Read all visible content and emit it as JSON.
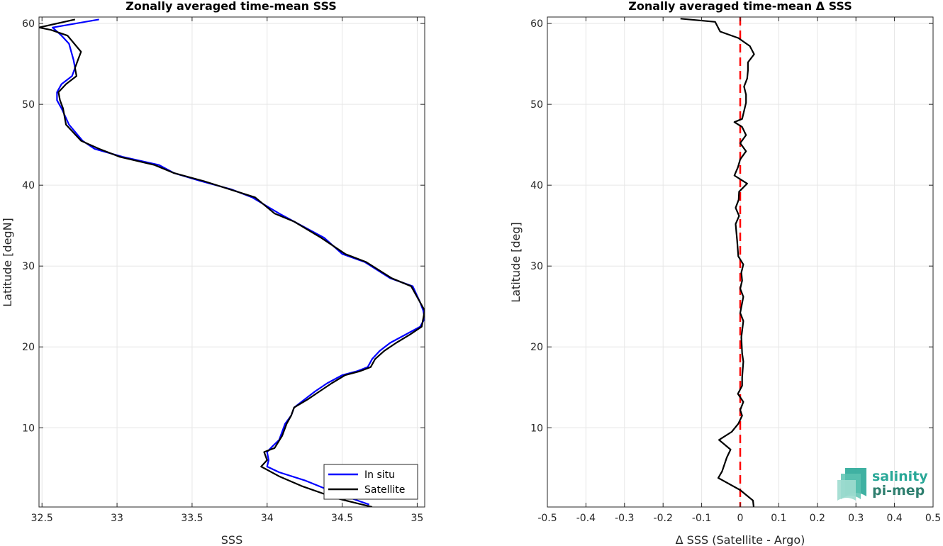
{
  "chart_data": [
    {
      "type": "line",
      "title": "Zonally averaged time-mean SSS",
      "xlabel": "SSS",
      "ylabel": "Latitude [degN]",
      "xlim": [
        32.48,
        35.05
      ],
      "ylim": [
        0.2,
        60.8
      ],
      "x_ticks": [
        "32.5",
        "33",
        "33.5",
        "34",
        "34.5",
        "35"
      ],
      "y_ticks": [
        "10",
        "20",
        "30",
        "40",
        "50",
        "60"
      ],
      "grid": true,
      "legend": {
        "placement": "bottom-right",
        "entries": [
          "In situ",
          "Satellite"
        ]
      },
      "series": [
        {
          "name": "In situ",
          "color": "#0000ff",
          "points": [
            [
              34.68,
              0.5
            ],
            [
              34.45,
              2.0
            ],
            [
              34.25,
              3.5
            ],
            [
              34.08,
              4.5
            ],
            [
              34.0,
              5.2
            ],
            [
              34.01,
              6.0
            ],
            [
              34.0,
              7.0
            ],
            [
              34.03,
              7.6
            ],
            [
              34.08,
              8.5
            ],
            [
              34.1,
              9.5
            ],
            [
              34.12,
              10.5
            ],
            [
              34.16,
              11.5
            ],
            [
              34.18,
              12.5
            ],
            [
              34.25,
              13.5
            ],
            [
              34.32,
              14.5
            ],
            [
              34.4,
              15.5
            ],
            [
              34.5,
              16.5
            ],
            [
              34.6,
              17.0
            ],
            [
              34.67,
              17.5
            ],
            [
              34.7,
              18.5
            ],
            [
              34.75,
              19.5
            ],
            [
              34.82,
              20.5
            ],
            [
              34.92,
              21.5
            ],
            [
              35.02,
              22.5
            ],
            [
              35.05,
              23.5
            ],
            [
              35.04,
              24.5
            ],
            [
              35.02,
              25.5
            ],
            [
              34.97,
              27.5
            ],
            [
              34.82,
              28.5
            ],
            [
              34.65,
              30.5
            ],
            [
              34.5,
              31.5
            ],
            [
              34.38,
              33.5
            ],
            [
              34.18,
              35.5
            ],
            [
              34.08,
              36.5
            ],
            [
              33.9,
              38.5
            ],
            [
              33.76,
              39.5
            ],
            [
              33.56,
              40.5
            ],
            [
              33.38,
              41.5
            ],
            [
              33.28,
              42.5
            ],
            [
              33.04,
              43.5
            ],
            [
              32.85,
              44.5
            ],
            [
              32.77,
              45.5
            ],
            [
              32.68,
              47.5
            ],
            [
              32.63,
              49.5
            ],
            [
              32.6,
              50.5
            ],
            [
              32.6,
              51.5
            ],
            [
              32.63,
              52.5
            ],
            [
              32.7,
              53.5
            ],
            [
              32.72,
              54.5
            ],
            [
              32.71,
              55.5
            ],
            [
              32.68,
              57.5
            ],
            [
              32.63,
              58.5
            ],
            [
              32.57,
              59.5
            ],
            [
              32.88,
              60.5
            ]
          ]
        },
        {
          "name": "Satellite",
          "color": "#000000",
          "points": [
            [
              34.7,
              0.2
            ],
            [
              34.46,
              1.3
            ],
            [
              34.23,
              2.8
            ],
            [
              34.08,
              4.0
            ],
            [
              33.96,
              5.2
            ],
            [
              34.0,
              6.0
            ],
            [
              33.98,
              7.0
            ],
            [
              34.05,
              7.5
            ],
            [
              34.1,
              9.0
            ],
            [
              34.13,
              10.5
            ],
            [
              34.16,
              11.5
            ],
            [
              34.18,
              12.5
            ],
            [
              34.27,
              13.5
            ],
            [
              34.35,
              14.5
            ],
            [
              34.43,
              15.5
            ],
            [
              34.52,
              16.5
            ],
            [
              34.62,
              17.0
            ],
            [
              34.69,
              17.5
            ],
            [
              34.72,
              18.5
            ],
            [
              34.78,
              19.5
            ],
            [
              34.86,
              20.5
            ],
            [
              34.95,
              21.5
            ],
            [
              35.03,
              22.5
            ],
            [
              35.04,
              23.5
            ],
            [
              35.05,
              24.5
            ],
            [
              35.02,
              25.5
            ],
            [
              34.96,
              27.5
            ],
            [
              34.83,
              28.5
            ],
            [
              34.66,
              30.5
            ],
            [
              34.52,
              31.5
            ],
            [
              34.36,
              33.5
            ],
            [
              34.18,
              35.5
            ],
            [
              34.05,
              36.5
            ],
            [
              33.92,
              38.5
            ],
            [
              33.75,
              39.5
            ],
            [
              33.58,
              40.5
            ],
            [
              33.38,
              41.5
            ],
            [
              33.25,
              42.5
            ],
            [
              33.02,
              43.5
            ],
            [
              32.88,
              44.5
            ],
            [
              32.76,
              45.5
            ],
            [
              32.66,
              47.5
            ],
            [
              32.64,
              49.5
            ],
            [
              32.62,
              50.5
            ],
            [
              32.61,
              51.5
            ],
            [
              32.66,
              52.5
            ],
            [
              32.73,
              53.5
            ],
            [
              32.72,
              54.5
            ],
            [
              32.74,
              55.5
            ],
            [
              32.76,
              56.5
            ],
            [
              32.67,
              58.5
            ],
            [
              32.56,
              59.2
            ],
            [
              32.48,
              59.5
            ],
            [
              32.72,
              60.5
            ]
          ]
        }
      ]
    },
    {
      "type": "line",
      "title": "Zonally averaged time-mean Δ SSS",
      "xlabel": "Δ SSS (Satellite - Argo)",
      "ylabel": "Latitude [deg]",
      "xlim": [
        -0.5,
        0.5
      ],
      "ylim": [
        0.2,
        60.8
      ],
      "x_ticks": [
        "-0.5",
        "-0.4",
        "-0.3",
        "-0.2",
        "-0.1",
        "0",
        "0.1",
        "0.2",
        "0.3",
        "0.4",
        "0.5"
      ],
      "y_ticks": [
        "10",
        "20",
        "30",
        "40",
        "50",
        "60"
      ],
      "grid": true,
      "reference_line": {
        "x": 0,
        "color": "#ff0000",
        "style": "dashed"
      },
      "series": [
        {
          "color": "#000000",
          "points": [
            [
              0.035,
              0.2
            ],
            [
              0.033,
              1.0
            ],
            [
              0.0,
              2.3
            ],
            [
              -0.057,
              3.8
            ],
            [
              -0.047,
              4.6
            ],
            [
              -0.035,
              6.3
            ],
            [
              -0.025,
              7.3
            ],
            [
              -0.055,
              8.5
            ],
            [
              -0.022,
              9.5
            ],
            [
              -0.005,
              10.5
            ],
            [
              0.005,
              11.5
            ],
            [
              0.0,
              12.2
            ],
            [
              0.008,
              13.2
            ],
            [
              -0.006,
              14.2
            ],
            [
              0.005,
              15.2
            ],
            [
              0.005,
              16.2
            ],
            [
              0.008,
              18.2
            ],
            [
              0.005,
              19.2
            ],
            [
              0.003,
              21.2
            ],
            [
              0.008,
              23.2
            ],
            [
              0.0,
              24.2
            ],
            [
              0.008,
              26.2
            ],
            [
              0.0,
              27.2
            ],
            [
              0.005,
              28.2
            ],
            [
              0.003,
              29.2
            ],
            [
              0.008,
              30.2
            ],
            [
              -0.005,
              31.2
            ],
            [
              -0.008,
              33.2
            ],
            [
              -0.012,
              35.2
            ],
            [
              -0.003,
              36.2
            ],
            [
              -0.012,
              37.2
            ],
            [
              -0.004,
              38.2
            ],
            [
              -0.003,
              39.2
            ],
            [
              0.018,
              40.2
            ],
            [
              -0.015,
              41.2
            ],
            [
              -0.006,
              42.2
            ],
            [
              0.0,
              43.2
            ],
            [
              0.015,
              44.2
            ],
            [
              0.0,
              45.2
            ],
            [
              0.015,
              46.2
            ],
            [
              0.005,
              47.2
            ],
            [
              -0.015,
              47.8
            ],
            [
              0.005,
              48.2
            ],
            [
              0.015,
              50.2
            ],
            [
              0.015,
              51.2
            ],
            [
              0.01,
              52.2
            ],
            [
              0.018,
              53.2
            ],
            [
              0.02,
              54.2
            ],
            [
              0.02,
              55.2
            ],
            [
              0.036,
              56.2
            ],
            [
              0.025,
              57.2
            ],
            [
              -0.005,
              58.2
            ],
            [
              -0.052,
              59.0
            ],
            [
              -0.065,
              60.2
            ],
            [
              -0.155,
              60.6
            ]
          ]
        }
      ]
    }
  ],
  "logo": {
    "line1": "salinity",
    "line2": "pi-mep",
    "color": "#2aa898"
  }
}
